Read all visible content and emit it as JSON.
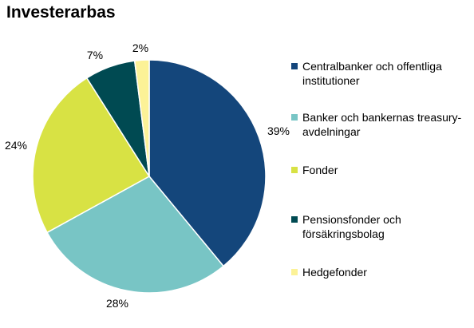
{
  "chart_data": {
    "type": "pie",
    "title": "Investerarbas",
    "categories": [
      "Centralbanker och offentliga institutioner",
      "Banker och bankernas treasury-avdelningar",
      "Fonder",
      "Pensionsfonder och försäkringsbolag",
      "Hedgefonder"
    ],
    "values": [
      39,
      28,
      24,
      7,
      2
    ],
    "value_labels": [
      "39%",
      "28%",
      "24%",
      "7%",
      "2%"
    ],
    "colors": [
      "#14467b",
      "#78c5c5",
      "#d8e244",
      "#004a52",
      "#fcf297"
    ],
    "legend_position": "right",
    "legend_labels": [
      "Centralbanker och offentliga\ninstitutioner",
      "Banker och bankernas treasury-\navdelningar",
      "Fonder",
      "Pensionsfonder och\nförsäkringsbolag",
      "Hedgefonder"
    ]
  }
}
